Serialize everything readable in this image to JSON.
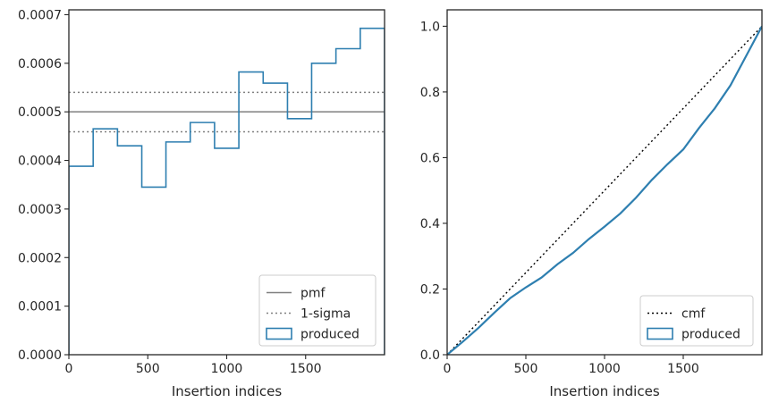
{
  "chart_data": [
    {
      "type": "line",
      "xlabel": "Insertion indices",
      "ylabel": "",
      "xlim": [
        0,
        2000
      ],
      "ylim": [
        0,
        0.00071
      ],
      "x_ticks": [
        "0",
        "500",
        "1000",
        "1500"
      ],
      "x_tick_values": [
        0,
        500,
        1000,
        1500
      ],
      "y_ticks": [
        "0.0000",
        "0.0001",
        "0.0002",
        "0.0003",
        "0.0004",
        "0.0005",
        "0.0006",
        "0.0007"
      ],
      "y_tick_values": [
        0,
        0.0001,
        0.0002,
        0.0003,
        0.0004,
        0.0005,
        0.0006,
        0.0007
      ],
      "grid": false,
      "legend_position": "bottom-right",
      "series": [
        {
          "name": "pmf",
          "kind": "hline",
          "y": 0.0005,
          "color": "#808080",
          "style": "solid"
        },
        {
          "name": "1-sigma",
          "kind": "hlines",
          "y": [
            0.000459,
            0.00054
          ],
          "color": "#808080",
          "style": "dotted"
        },
        {
          "name": "produced",
          "kind": "step-histogram",
          "color": "#2e7fb0",
          "bin_edges": [
            0,
            154,
            308,
            462,
            615,
            769,
            923,
            1077,
            1231,
            1385,
            1538,
            1692,
            1846,
            2000
          ],
          "values": [
            0.000388,
            0.000465,
            0.00043,
            0.000345,
            0.000438,
            0.000478,
            0.000425,
            0.000582,
            0.000559,
            0.000486,
            0.0006,
            0.00063,
            0.000672
          ]
        }
      ],
      "legend": [
        "pmf",
        "1-sigma",
        "produced"
      ]
    },
    {
      "type": "line",
      "xlabel": "Insertion indices",
      "ylabel": "",
      "xlim": [
        0,
        2000
      ],
      "ylim": [
        0,
        1.05
      ],
      "x_ticks": [
        "0",
        "500",
        "1000",
        "1500"
      ],
      "x_tick_values": [
        0,
        500,
        1000,
        1500
      ],
      "y_ticks": [
        "0.0",
        "0.2",
        "0.4",
        "0.6",
        "0.8",
        "1.0"
      ],
      "y_tick_values": [
        0,
        0.2,
        0.4,
        0.6,
        0.8,
        1.0
      ],
      "grid": false,
      "legend_position": "bottom-right",
      "series": [
        {
          "name": "cmf",
          "kind": "line",
          "x": [
            0,
            2000
          ],
          "y": [
            0,
            1
          ],
          "color": "#000000",
          "style": "dotted"
        },
        {
          "name": "produced",
          "kind": "line",
          "color": "#2e7fb0",
          "x": [
            0,
            100,
            200,
            300,
            400,
            500,
            600,
            700,
            800,
            900,
            1000,
            1100,
            1200,
            1300,
            1400,
            1500,
            1600,
            1700,
            1800,
            1900,
            2000
          ],
          "y": [
            0,
            0.04,
            0.082,
            0.128,
            0.172,
            0.205,
            0.235,
            0.275,
            0.31,
            0.352,
            0.39,
            0.43,
            0.478,
            0.532,
            0.58,
            0.625,
            0.69,
            0.75,
            0.82,
            0.91,
            1.0
          ]
        }
      ],
      "legend": [
        "cmf",
        "produced"
      ]
    }
  ]
}
